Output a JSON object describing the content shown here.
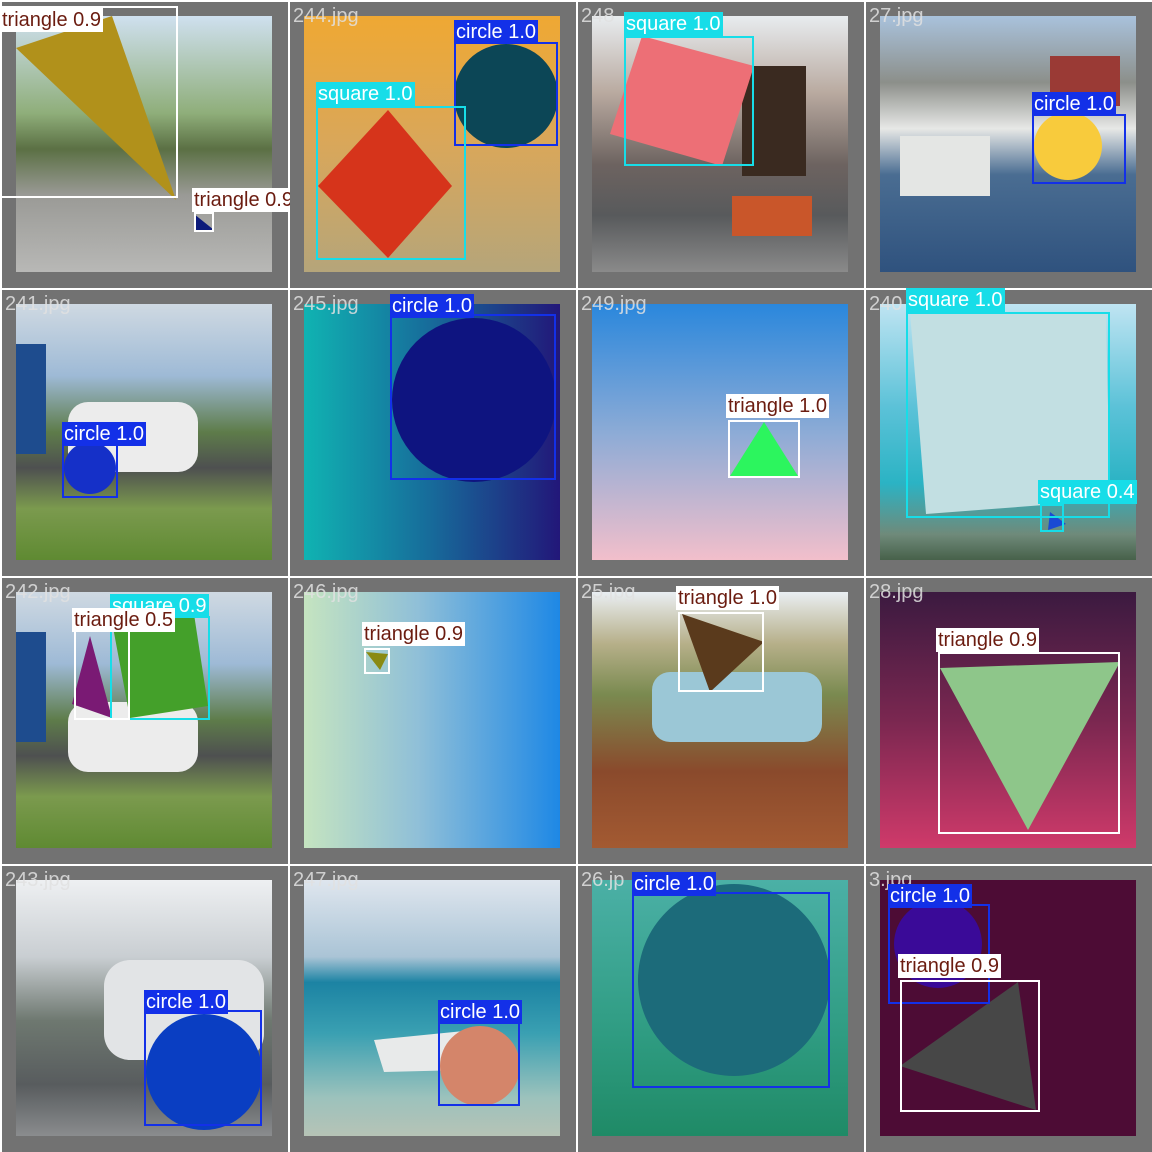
{
  "tiles": [
    {
      "file": "",
      "labels": [
        "triangle 0.9",
        "triangle 0.9"
      ]
    },
    {
      "file": "244.jpg",
      "labels": [
        "circle 1.0",
        "square 1.0"
      ]
    },
    {
      "file": "248",
      "labels": [
        "square 1.0"
      ]
    },
    {
      "file": "27.jpg",
      "labels": [
        "circle 1.0"
      ]
    },
    {
      "file": "241.jpg",
      "labels": [
        "circle 1.0"
      ]
    },
    {
      "file": "245.jpg",
      "labels": [
        "circle 1.0"
      ]
    },
    {
      "file": "249.jpg",
      "labels": [
        "triangle 1.0"
      ]
    },
    {
      "file": "240",
      "labels": [
        "square 1.0",
        "square 0.4"
      ]
    },
    {
      "file": "242.jpg",
      "labels": [
        "square 0.9",
        "triangle 0.5"
      ]
    },
    {
      "file": "246.jpg",
      "labels": [
        "triangle 0.9"
      ]
    },
    {
      "file": "25.jpg",
      "labels": [
        "triangle 1.0"
      ]
    },
    {
      "file": "28.jpg",
      "labels": [
        "triangle 0.9"
      ]
    },
    {
      "file": "243.jpg",
      "labels": [
        "circle 1.0"
      ]
    },
    {
      "file": "247.jpg",
      "labels": [
        "circle 1.0"
      ]
    },
    {
      "file": "26.jp",
      "labels": [
        "circle 1.0"
      ]
    },
    {
      "file": "3.jpg",
      "labels": [
        "circle 1.0",
        "triangle 0.9"
      ]
    }
  ],
  "colors": {
    "triangle": "#ffffff",
    "square": "#17dde8",
    "circle": "#1330e8",
    "tile_border": "#727272"
  }
}
